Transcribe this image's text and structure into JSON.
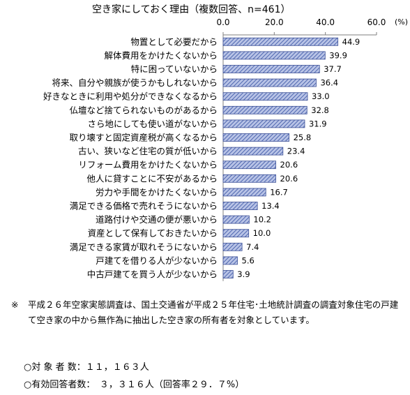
{
  "chart_data": {
    "type": "bar",
    "orientation": "horizontal",
    "title": "空き家にしておく理由（複数回答、n=461）",
    "unit": "(%)",
    "xlim": [
      0,
      60
    ],
    "ticks": [
      "0.0",
      "20.0",
      "40.0",
      "60.0"
    ],
    "grid": false,
    "bar_color": "#6f84c2",
    "categories": [
      "物置として必要だから",
      "解体費用をかけたくないから",
      "特に困っていないから",
      "将来、自分や親族が使うかもしれないから",
      "好きなときに利用や処分ができなくなるから",
      "仏壇など捨てられないものがあるから",
      "さら地にしても使い道がないから",
      "取り壊すと固定資産税が高くなるから",
      "古い、狭いなど住宅の質が低いから",
      "リフォーム費用をかけたくないから",
      "他人に貸すことに不安があるから",
      "労力や手間をかけたくないから",
      "満足できる価格で売れそうにないから",
      "道路付けや交通の便が悪いから",
      "資産として保有しておきたいから",
      "満足できる家賃が取れそうにないから",
      "戸建てを借りる人が少ないから",
      "中古戸建てを買う人が少ないから"
    ],
    "values": [
      44.9,
      39.9,
      37.7,
      36.4,
      33.0,
      32.8,
      31.9,
      25.8,
      23.4,
      20.6,
      20.6,
      16.7,
      13.4,
      10.2,
      10.0,
      7.4,
      5.6,
      3.9
    ],
    "value_labels": [
      "44.9",
      "39.9",
      "37.7",
      "36.4",
      "33.0",
      "32.8",
      "31.9",
      "25.8",
      "23.4",
      "20.6",
      "20.6",
      "16.7",
      "13.4",
      "10.2",
      "10.0",
      "7.4",
      "5.6",
      "3.9"
    ]
  },
  "note": {
    "mark": "※",
    "text": "平成２６年空家実態調査は、国土交通省が平成２５年住宅･土地統計調査の調査対象住宅の戸建て空き家の中から無作為に抽出した空き家の所有者を対象としています。"
  },
  "stats": {
    "respondents": "○対 象 者 数：１１，１６３人",
    "valid": "○有効回答者数：　３，３１６人（回答率２９．７%）"
  }
}
